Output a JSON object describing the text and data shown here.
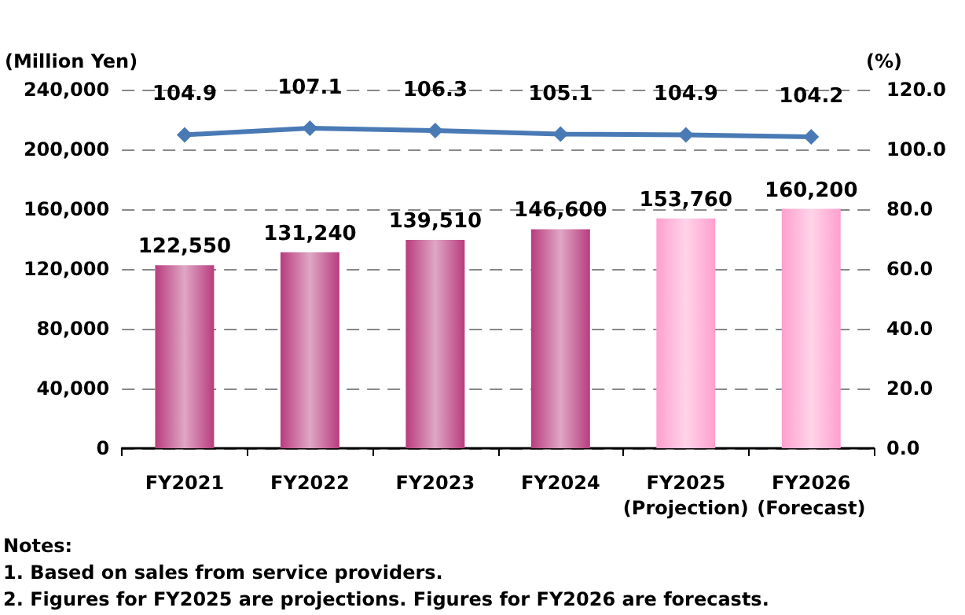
{
  "chart_data": {
    "type": "bar",
    "categories": [
      "FY2021",
      "FY2022",
      "FY2023",
      "FY2024",
      "FY2025\n(Projection)",
      "FY2026\n(Forecast)"
    ],
    "series": [
      {
        "colors": [
          "#b83c7e",
          "#b83c7e",
          "#b83c7e",
          "#b83c7e",
          "#ff9fce",
          "#ff9fce"
        ],
        "values": [
          122550,
          131240,
          139510,
          146600,
          153760,
          160200
        ],
        "value_labels": [
          "122,550",
          "131,240",
          "139,510",
          "146,600",
          "153,760",
          "160,200"
        ]
      },
      {
        "type": "line",
        "axis": "y2",
        "color": "#4a7ab5",
        "marker": "diamond",
        "values": [
          104.9,
          107.1,
          106.3,
          105.1,
          104.9,
          104.2
        ],
        "value_labels": [
          "104.9",
          "107.1",
          "106.3",
          "105.1",
          "104.9",
          "104.2"
        ]
      }
    ],
    "ylabel": "(Million Yen)",
    "y2label": "(%)",
    "ylim": [
      0,
      240000
    ],
    "yticks": [
      {
        "value": 0,
        "label": "0"
      },
      {
        "value": 40000,
        "label": "40,000"
      },
      {
        "value": 80000,
        "label": "80,000"
      },
      {
        "value": 120000,
        "label": "120,000"
      },
      {
        "value": 160000,
        "label": "160,000"
      },
      {
        "value": 200000,
        "label": "200,000"
      },
      {
        "value": 240000,
        "label": "240,000"
      }
    ],
    "y2lim": [
      0,
      120
    ],
    "y2ticks": [
      {
        "value": 0,
        "label": "0.0"
      },
      {
        "value": 20,
        "label": "20.0"
      },
      {
        "value": 40,
        "label": "40.0"
      },
      {
        "value": 60,
        "label": "60.0"
      },
      {
        "value": 80,
        "label": "80.0"
      },
      {
        "value": 100,
        "label": "100.0"
      },
      {
        "value": 120,
        "label": "120.0"
      }
    ],
    "grid": "y",
    "annotations": [
      "Notes:",
      "1. Based on sales from service providers.",
      "2. Figures for FY2025 are projections. Figures for FY2026 are forecasts."
    ]
  }
}
